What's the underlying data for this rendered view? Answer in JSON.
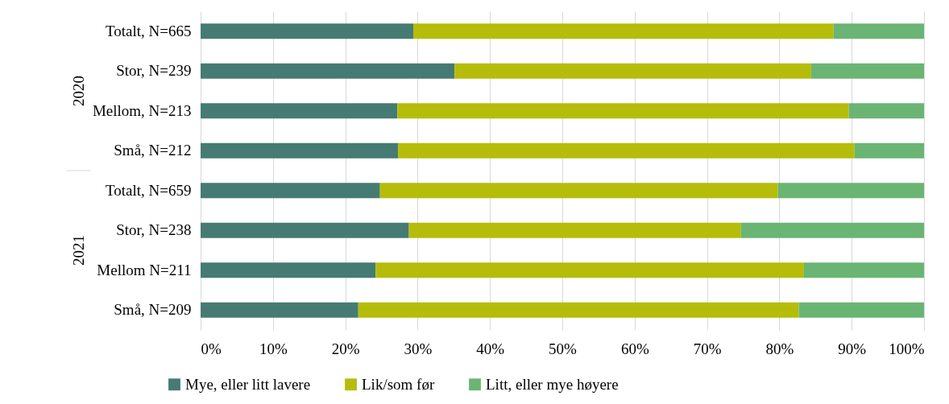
{
  "chart_data": {
    "type": "bar",
    "orientation": "horizontal",
    "stacked": true,
    "categories": [
      "Totalt, N=665",
      "Stor, N=239",
      "Mellom, N=213",
      "Små, N=212",
      "Totalt, N=659",
      "Stor, N=238",
      "Mellom N=211",
      "Små, N=209"
    ],
    "annotations": [
      "2020",
      "2021"
    ],
    "series": [
      {
        "name": "Mye, eller litt lavere",
        "color": "#457b72",
        "values": [
          29.4,
          35.1,
          27.2,
          27.3,
          24.8,
          28.8,
          24.2,
          21.8
        ]
      },
      {
        "name": "Lik/som før",
        "color": "#b5bd0a",
        "values": [
          58.1,
          49.3,
          62.4,
          63.1,
          55.0,
          45.9,
          59.2,
          60.9
        ]
      },
      {
        "name": "Litt, eller mye høyere",
        "color": "#6ab574",
        "values": [
          12.5,
          15.6,
          10.4,
          9.6,
          20.2,
          25.3,
          16.6,
          17.3
        ]
      }
    ],
    "xlim": [
      0,
      100
    ],
    "xticks": [
      {
        "value": 0,
        "label": "0%"
      },
      {
        "value": 10,
        "label": "10%"
      },
      {
        "value": 20,
        "label": "20%"
      },
      {
        "value": 30,
        "label": "30%"
      },
      {
        "value": 40,
        "label": "40%"
      },
      {
        "value": 50,
        "label": "50%"
      },
      {
        "value": 60,
        "label": "60%"
      },
      {
        "value": 70,
        "label": "70%"
      },
      {
        "value": 80,
        "label": "80%"
      },
      {
        "value": 90,
        "label": "90%"
      },
      {
        "value": 100,
        "label": "100%"
      }
    ],
    "grid": "x",
    "legend": "bottom"
  }
}
